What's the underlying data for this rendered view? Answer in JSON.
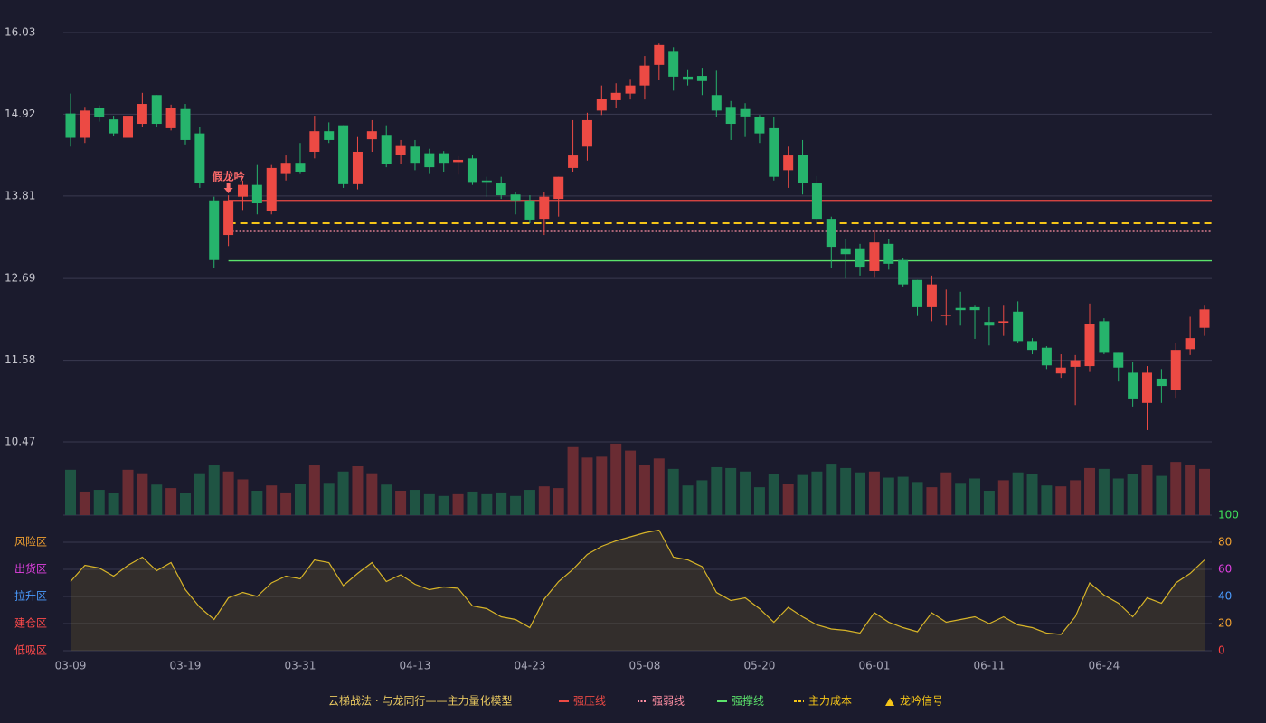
{
  "chart_data": {
    "type": "candlestick",
    "categories": [
      "03-09",
      null,
      null,
      null,
      null,
      null,
      null,
      null,
      "03-19",
      null,
      null,
      null,
      null,
      null,
      null,
      null,
      "03-31",
      null,
      null,
      null,
      null,
      null,
      null,
      null,
      "04-13",
      null,
      null,
      null,
      null,
      null,
      null,
      null,
      "04-23",
      null,
      null,
      null,
      null,
      null,
      null,
      null,
      "05-08",
      null,
      null,
      null,
      null,
      null,
      null,
      null,
      "05-20",
      null,
      null,
      null,
      null,
      null,
      null,
      null,
      "06-01",
      null,
      null,
      null,
      null,
      null,
      null,
      null,
      "06-11",
      null,
      null,
      null,
      null,
      null,
      null,
      null,
      "06-24",
      null,
      null,
      null,
      null,
      null,
      null,
      null
    ],
    "open": [
      14.93,
      14.6,
      15.0,
      14.85,
      14.6,
      14.79,
      15.18,
      14.73,
      14.99,
      14.66,
      13.75,
      13.28,
      13.8,
      13.96,
      13.61,
      14.12,
      14.26,
      14.41,
      14.69,
      14.77,
      13.97,
      14.58,
      14.64,
      14.37,
      14.48,
      14.39,
      14.39,
      14.27,
      14.32,
      14.02,
      13.98,
      13.83,
      13.75,
      13.5,
      13.77,
      14.19,
      14.48,
      14.97,
      15.11,
      15.2,
      15.31,
      15.59,
      15.78,
      15.43,
      15.44,
      15.18,
      15.02,
      14.99,
      14.88,
      14.73,
      14.16,
      14.37,
      13.98,
      13.5,
      13.1,
      13.1,
      12.79,
      13.16,
      12.94,
      12.67,
      12.3,
      12.18,
      12.29,
      12.3,
      12.1,
      12.09,
      12.24,
      11.84,
      11.75,
      11.4,
      11.49,
      11.5,
      12.11,
      11.68,
      11.41,
      11.0,
      11.33,
      11.17,
      11.73,
      12.02
    ],
    "high": [
      15.2,
      15.02,
      15.04,
      14.9,
      15.1,
      15.21,
      15.18,
      15.05,
      15.06,
      14.75,
      13.8,
      13.82,
      14.02,
      14.23,
      14.23,
      14.36,
      14.53,
      14.9,
      14.81,
      14.77,
      14.61,
      14.84,
      14.77,
      14.57,
      14.57,
      14.45,
      14.42,
      14.35,
      14.36,
      14.07,
      14.07,
      13.86,
      13.82,
      13.86,
      14.07,
      14.84,
      14.94,
      15.31,
      15.34,
      15.4,
      15.71,
      15.88,
      15.83,
      15.53,
      15.55,
      15.51,
      15.1,
      15.07,
      14.91,
      14.88,
      14.48,
      14.57,
      14.08,
      13.53,
      13.22,
      13.16,
      13.34,
      13.22,
      12.97,
      12.67,
      12.73,
      12.54,
      12.51,
      12.32,
      12.3,
      12.32,
      12.38,
      11.88,
      11.77,
      11.66,
      11.65,
      12.35,
      12.15,
      11.68,
      11.56,
      11.5,
      11.46,
      11.81,
      12.17,
      12.32
    ],
    "low": [
      14.48,
      14.53,
      14.82,
      14.63,
      14.51,
      14.75,
      14.75,
      14.7,
      14.51,
      13.92,
      12.83,
      13.13,
      13.62,
      13.56,
      13.56,
      14.02,
      14.12,
      14.32,
      14.53,
      13.92,
      13.9,
      14.41,
      14.2,
      14.25,
      14.16,
      14.12,
      14.14,
      14.1,
      13.96,
      13.8,
      13.77,
      13.56,
      13.44,
      13.28,
      13.53,
      14.14,
      14.29,
      14.91,
      15.0,
      15.12,
      15.12,
      15.39,
      15.24,
      15.31,
      15.18,
      14.88,
      14.57,
      14.61,
      14.53,
      14.02,
      13.92,
      13.83,
      13.43,
      12.83,
      12.69,
      12.73,
      12.7,
      12.81,
      12.57,
      12.18,
      12.11,
      12.05,
      12.05,
      11.87,
      11.78,
      11.91,
      11.81,
      11.66,
      11.46,
      11.34,
      10.97,
      11.42,
      11.66,
      11.29,
      10.95,
      10.63,
      11.0,
      11.07,
      11.65,
      11.91
    ],
    "close": [
      14.6,
      14.97,
      14.88,
      14.66,
      14.9,
      15.06,
      14.79,
      15.0,
      14.57,
      13.98,
      12.94,
      13.75,
      13.96,
      13.71,
      14.19,
      14.26,
      14.14,
      14.69,
      14.57,
      13.97,
      14.41,
      14.69,
      14.25,
      14.5,
      14.26,
      14.2,
      14.26,
      14.3,
      14.0,
      14.0,
      13.82,
      13.75,
      13.49,
      13.8,
      14.07,
      14.36,
      14.84,
      15.13,
      15.21,
      15.31,
      15.58,
      15.86,
      15.43,
      15.4,
      15.37,
      14.97,
      14.79,
      14.89,
      14.66,
      14.07,
      14.36,
      13.99,
      13.5,
      13.12,
      13.02,
      12.85,
      13.18,
      12.89,
      12.61,
      12.3,
      12.61,
      12.2,
      12.26,
      12.26,
      12.05,
      12.11,
      11.84,
      11.72,
      11.51,
      11.48,
      11.58,
      12.07,
      11.68,
      11.48,
      11.06,
      11.41,
      11.23,
      11.72,
      11.88,
      12.27
    ],
    "up_color": "#ec4a44",
    "down_color": "#26b46c",
    "ylim": [
      10.47,
      16.03
    ],
    "yticks": [
      16.03,
      14.92,
      13.81,
      12.69,
      11.58,
      10.47
    ],
    "grid": true,
    "volume": {
      "values": [
        52,
        27,
        29,
        25,
        52,
        48,
        35,
        31,
        25,
        48,
        57,
        50,
        41,
        28,
        34,
        26,
        36,
        57,
        37,
        50,
        56,
        48,
        35,
        28,
        29,
        24,
        22,
        24,
        27,
        24,
        26,
        22,
        29,
        33,
        31,
        78,
        66,
        67,
        82,
        74,
        58,
        65,
        53,
        34,
        40,
        55,
        54,
        50,
        32,
        47,
        36,
        46,
        50,
        59,
        54,
        49,
        50,
        43,
        44,
        38,
        32,
        49,
        37,
        42,
        28,
        40,
        49,
        47,
        34,
        33,
        40,
        54,
        53,
        42,
        47,
        58,
        45,
        61,
        58,
        53
      ],
      "ylim": [
        0,
        85
      ],
      "up_color": "#6a2c33",
      "down_color": "#1f5443"
    },
    "levels": [
      {
        "name": "强压线",
        "value": 13.75,
        "color": "#ec4a44",
        "style": "solid"
      },
      {
        "name": "强弱线",
        "value": 13.33,
        "color": "#ff8fa3",
        "style": "dotted"
      },
      {
        "name": "强撑线",
        "value": 12.93,
        "color": "#5be36b",
        "style": "solid"
      },
      {
        "name": "主力成本",
        "value": 13.44,
        "color": "#f5c518",
        "style": "dashed"
      }
    ],
    "signal": {
      "name": "龙吟信号",
      "label": "假龙吟",
      "index": 11,
      "color": "#ff6b6b",
      "legend_color": "#f5c518"
    },
    "model_label": "云梯战法 · 与龙同行——主力量化模型",
    "oscillator": {
      "values": [
        51,
        63,
        61,
        55,
        63,
        69,
        59,
        65,
        45,
        32,
        23,
        39,
        43,
        40,
        50,
        55,
        53,
        67,
        65,
        48,
        57,
        65,
        51,
        56,
        49,
        45,
        47,
        46,
        33,
        31,
        25,
        23,
        17,
        38,
        51,
        60,
        71,
        77,
        81,
        84,
        87,
        89,
        69,
        67,
        62,
        43,
        37,
        39,
        31,
        21,
        32,
        25,
        19,
        16,
        15,
        13,
        28,
        21,
        17,
        14,
        28,
        21,
        23,
        25,
        20,
        25,
        19,
        17,
        13,
        12,
        25,
        50,
        41,
        35,
        25,
        39,
        35,
        50,
        57,
        67
      ],
      "color": "#d7b428",
      "ylim": [
        0,
        100
      ],
      "yticks": [
        0,
        20,
        40,
        60,
        80,
        100
      ],
      "ytick_colors": [
        "#ff4040",
        "#f0a030",
        "#4a9cff",
        "#e040e0",
        "#f0a030",
        "#3ee05a"
      ],
      "zones": [
        {
          "label": "风险区",
          "value": 80,
          "color": "#f0a030"
        },
        {
          "label": "出货区",
          "value": 60,
          "color": "#e040e0"
        },
        {
          "label": "拉升区",
          "value": 40,
          "color": "#4a9cff"
        },
        {
          "label": "建仓区",
          "value": 20,
          "color": "#ff4a4a"
        },
        {
          "label": "低吸区",
          "value": 0,
          "color": "#ff4a4a"
        }
      ]
    }
  }
}
